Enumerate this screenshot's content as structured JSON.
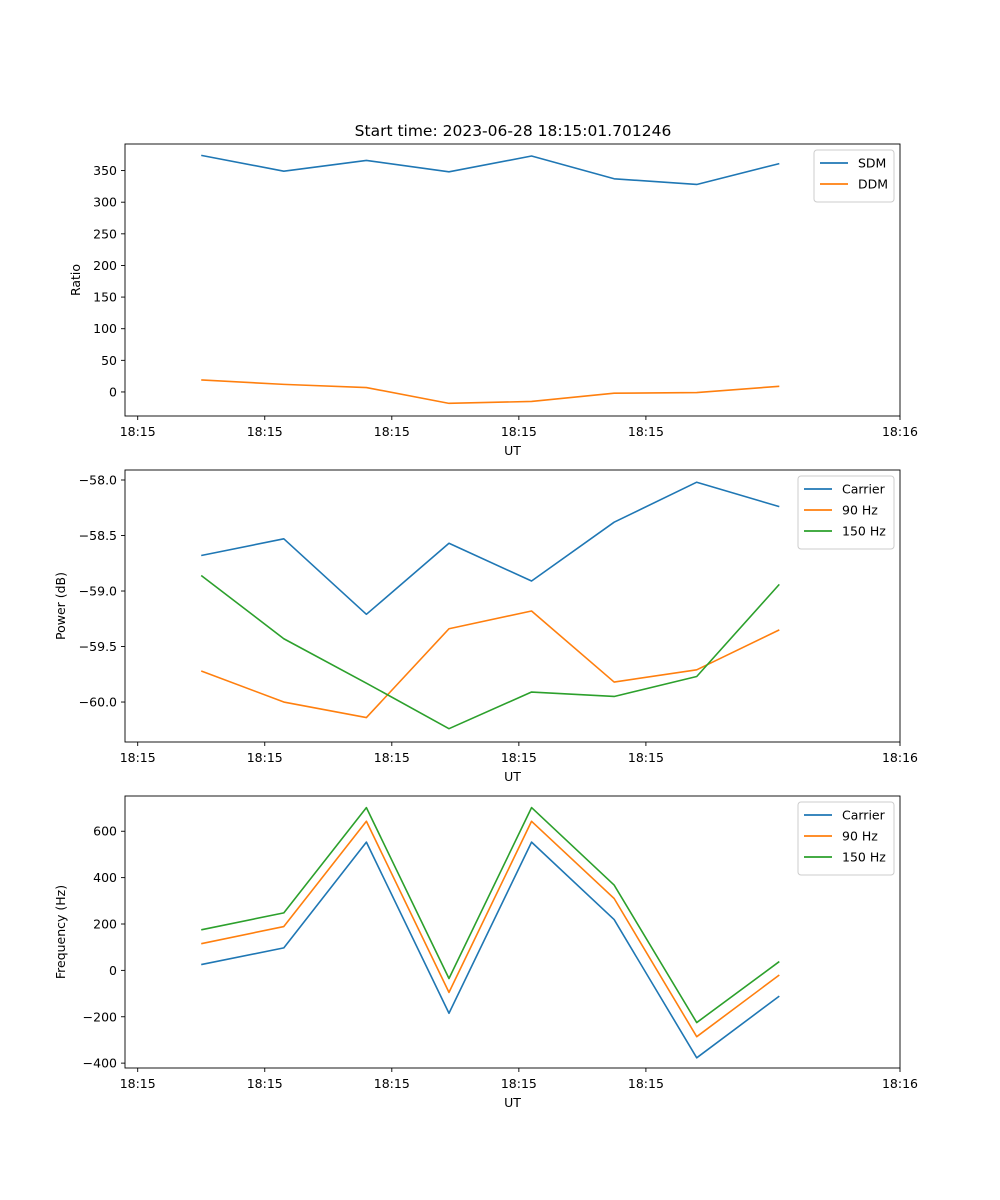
{
  "figure": {
    "title": "Start time: 2023-06-28 18:15:01.701246"
  },
  "chart_data": [
    {
      "type": "line",
      "xlabel": "UT",
      "ylabel": "Ratio",
      "x_ticks": [
        "18:15",
        "18:15",
        "18:15",
        "18:15",
        "18:15",
        "18:16"
      ],
      "x_tick_values": [
        0.0,
        1.0,
        2.0,
        3.0,
        4.0,
        6.0
      ],
      "xlim": [
        -0.1,
        6.0
      ],
      "ylim": [
        -38,
        392
      ],
      "y_ticks": [
        0,
        50,
        100,
        150,
        200,
        250,
        300,
        350
      ],
      "x": [
        0.5,
        1.15,
        1.8,
        2.45,
        3.1,
        3.75,
        4.4,
        5.05
      ],
      "legend_position": "upper right",
      "series": [
        {
          "name": "SDM",
          "color": "#1f77b4",
          "values": [
            374,
            349,
            366,
            348,
            373,
            337,
            328,
            361
          ]
        },
        {
          "name": "DDM",
          "color": "#ff7f0e",
          "values": [
            19,
            12,
            7,
            -18,
            -15,
            -2,
            -1,
            9
          ]
        }
      ]
    },
    {
      "type": "line",
      "xlabel": "UT",
      "ylabel": "Power (dB)",
      "x_ticks": [
        "18:15",
        "18:15",
        "18:15",
        "18:15",
        "18:15",
        "18:16"
      ],
      "x_tick_values": [
        0.0,
        1.0,
        2.0,
        3.0,
        4.0,
        6.0
      ],
      "xlim": [
        -0.1,
        6.0
      ],
      "ylim": [
        -60.36,
        -57.91
      ],
      "y_ticks": [
        -60.0,
        -59.5,
        -59.0,
        -58.5,
        -58.0
      ],
      "y_tick_labels": [
        "−60.0",
        "−59.5",
        "−59.0",
        "−58.5",
        "−58.0"
      ],
      "x": [
        0.5,
        1.15,
        1.8,
        2.45,
        3.1,
        3.75,
        4.4,
        5.05
      ],
      "legend_position": "upper right",
      "series": [
        {
          "name": "Carrier",
          "color": "#1f77b4",
          "values": [
            -58.68,
            -58.53,
            -59.21,
            -58.57,
            -58.91,
            -58.38,
            -58.02,
            -58.24
          ]
        },
        {
          "name": "90 Hz",
          "color": "#ff7f0e",
          "values": [
            -59.72,
            -60.0,
            -60.14,
            -59.34,
            -59.18,
            -59.82,
            -59.71,
            -59.35
          ]
        },
        {
          "name": "150 Hz",
          "color": "#2ca02c",
          "values": [
            -58.86,
            -59.43,
            -59.83,
            -60.24,
            -59.91,
            -59.95,
            -59.77,
            -58.94
          ]
        }
      ]
    },
    {
      "type": "line",
      "xlabel": "UT",
      "ylabel": "Frequency (Hz)",
      "x_ticks": [
        "18:15",
        "18:15",
        "18:15",
        "18:15",
        "18:15",
        "18:16"
      ],
      "x_tick_values": [
        0.0,
        1.0,
        2.0,
        3.0,
        4.0,
        6.0
      ],
      "xlim": [
        -0.1,
        6.0
      ],
      "ylim": [
        -421,
        752
      ],
      "y_ticks": [
        -400,
        -200,
        0,
        200,
        400,
        600
      ],
      "y_tick_labels": [
        "−400",
        "−200",
        "0",
        "200",
        "400",
        "600"
      ],
      "x": [
        0.5,
        1.15,
        1.8,
        2.45,
        3.1,
        3.75,
        4.4,
        5.05
      ],
      "legend_position": "upper right",
      "series": [
        {
          "name": "Carrier",
          "color": "#1f77b4",
          "values": [
            25,
            97,
            553,
            -185,
            553,
            219,
            -377,
            -111
          ]
        },
        {
          "name": "90 Hz",
          "color": "#ff7f0e",
          "values": [
            115,
            189,
            643,
            -95,
            643,
            310,
            -286,
            -20
          ]
        },
        {
          "name": "150 Hz",
          "color": "#2ca02c",
          "values": [
            175,
            248,
            702,
            -35,
            702,
            368,
            -225,
            38
          ]
        }
      ]
    }
  ]
}
